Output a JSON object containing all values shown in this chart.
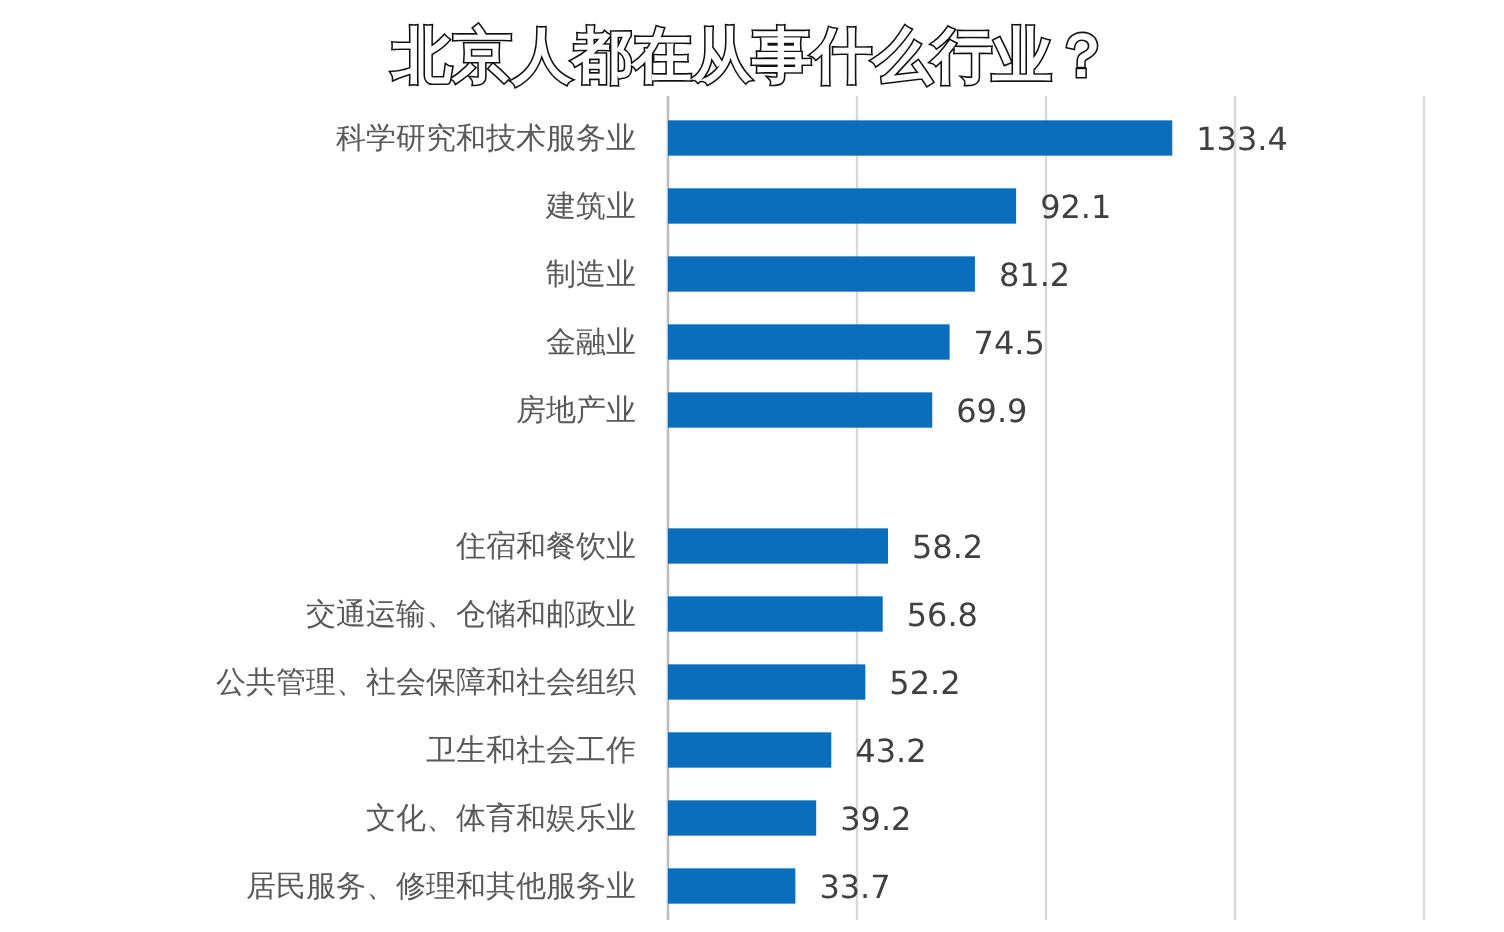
{
  "chart_data": {
    "type": "bar",
    "orientation": "horizontal",
    "title": "北京人都在从事什么行业？",
    "categories": [
      "科学研究和技术服务业",
      "建筑业",
      "制造业",
      "金融业",
      "房地产业",
      null,
      "住宿和餐饮业",
      "交通运输、仓储和邮政业",
      "公共管理、社会保障和社会组织",
      "卫生和社会工作",
      "文化、体育和娱乐业",
      "居民服务、修理和其他服务业"
    ],
    "values": [
      133.4,
      92.1,
      81.2,
      74.5,
      69.9,
      null,
      58.2,
      56.8,
      52.2,
      43.2,
      39.2,
      33.7
    ],
    "color": "#0a6ebd",
    "data_labels": true,
    "grid": "x",
    "tick_labels": "y",
    "xlim": [
      0,
      200
    ],
    "xticks": [
      {
        "value": 0,
        "label": null
      },
      {
        "value": 50,
        "label": null
      },
      {
        "value": 100,
        "label": null
      },
      {
        "value": 150,
        "label": null
      },
      {
        "value": 200,
        "label": null
      }
    ]
  }
}
